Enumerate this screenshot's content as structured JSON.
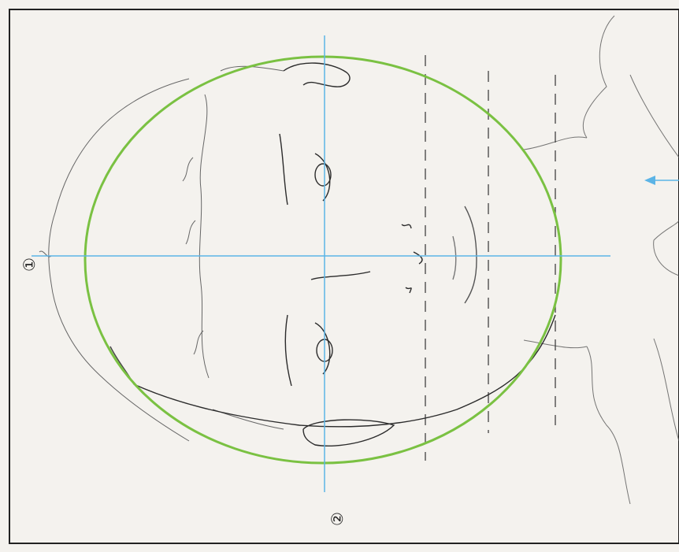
{
  "markers": {
    "one": "①",
    "two": "②"
  },
  "colors": {
    "circle": "#7ac142",
    "guide": "#5bb4e6",
    "pencil": "#3a3a3a",
    "paper": "#f4f2ee",
    "border": "#222222"
  }
}
